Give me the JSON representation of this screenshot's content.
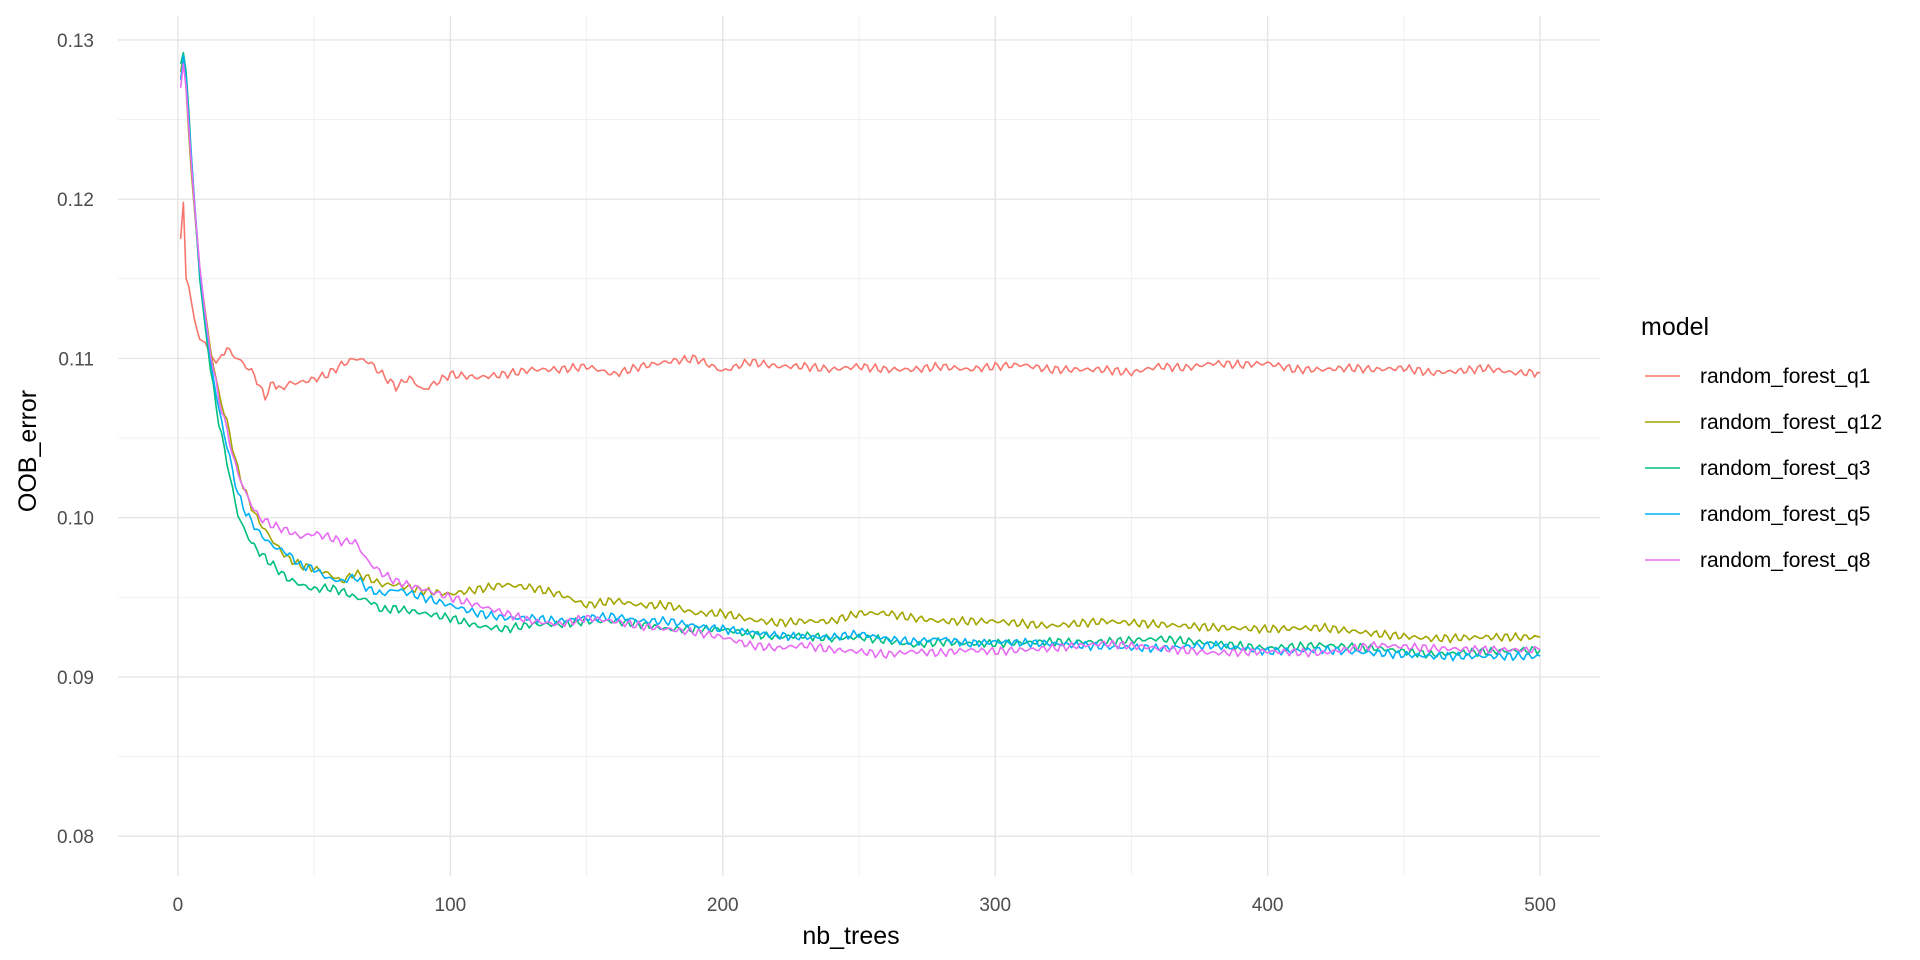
{
  "chart_data": {
    "type": "line",
    "xlabel": "nb_trees",
    "ylabel": "OOB_error",
    "xlim": [
      -22,
      522
    ],
    "ylim": [
      0.0775,
      0.1315
    ],
    "x_ticks": [
      0,
      100,
      200,
      300,
      400,
      500
    ],
    "x_tick_labels": [
      "0",
      "100",
      "200",
      "300",
      "400",
      "500"
    ],
    "y_ticks": [
      0.08,
      0.09,
      0.1,
      0.11,
      0.12,
      0.13
    ],
    "y_tick_labels": [
      "0.08",
      "0.09",
      "0.10",
      "0.11",
      "0.12",
      "0.13"
    ],
    "grid": true,
    "legend_position": "right",
    "legend_title": "model",
    "series": [
      {
        "name": "random_forest_q1",
        "color": "#F8766D",
        "x": [
          1,
          2,
          3,
          4,
          5,
          6,
          7,
          8,
          10,
          12,
          15,
          18,
          20,
          22,
          25,
          28,
          30,
          32,
          35,
          38,
          40,
          45,
          50,
          55,
          60,
          65,
          70,
          75,
          80,
          85,
          90,
          95,
          100,
          110,
          120,
          130,
          140,
          150,
          160,
          170,
          180,
          190,
          200,
          210,
          220,
          230,
          240,
          250,
          260,
          270,
          280,
          290,
          300,
          310,
          320,
          330,
          340,
          350,
          360,
          370,
          380,
          390,
          400,
          410,
          420,
          430,
          440,
          450,
          460,
          470,
          480,
          490,
          500
        ],
        "y": [
          0.1175,
          0.1198,
          0.115,
          0.1145,
          0.1135,
          0.1125,
          0.1118,
          0.1112,
          0.111,
          0.1102,
          0.1098,
          0.1107,
          0.1102,
          0.11,
          0.1095,
          0.109,
          0.1082,
          0.1076,
          0.1085,
          0.108,
          0.1084,
          0.1085,
          0.1087,
          0.109,
          0.1096,
          0.11,
          0.1098,
          0.109,
          0.1082,
          0.1088,
          0.108,
          0.1085,
          0.109,
          0.1088,
          0.109,
          0.1093,
          0.1093,
          0.1095,
          0.109,
          0.1095,
          0.1098,
          0.11,
          0.1092,
          0.1098,
          0.1095,
          0.1095,
          0.1093,
          0.1095,
          0.1093,
          0.1093,
          0.1095,
          0.1093,
          0.1095,
          0.1096,
          0.1093,
          0.1093,
          0.1093,
          0.1091,
          0.1095,
          0.1094,
          0.1097,
          0.1096,
          0.1097,
          0.1093,
          0.1093,
          0.1094,
          0.1093,
          0.1094,
          0.1091,
          0.1092,
          0.1094,
          0.1091,
          0.1091
        ]
      },
      {
        "name": "random_forest_q12",
        "color": "#A3A500",
        "x": [
          1,
          2,
          3,
          4,
          5,
          6,
          7,
          8,
          10,
          12,
          15,
          18,
          20,
          22,
          25,
          28,
          30,
          35,
          40,
          45,
          50,
          55,
          60,
          65,
          70,
          75,
          80,
          90,
          100,
          110,
          120,
          130,
          140,
          150,
          160,
          170,
          180,
          190,
          200,
          210,
          220,
          230,
          240,
          250,
          260,
          270,
          280,
          290,
          300,
          320,
          340,
          360,
          380,
          400,
          420,
          440,
          460,
          480,
          500
        ],
        "y": [
          0.128,
          0.129,
          0.127,
          0.124,
          0.1215,
          0.1195,
          0.1175,
          0.1155,
          0.113,
          0.1105,
          0.1078,
          0.106,
          0.1045,
          0.103,
          0.1015,
          0.1003,
          0.0997,
          0.0985,
          0.0975,
          0.097,
          0.0968,
          0.0965,
          0.096,
          0.0965,
          0.0962,
          0.0958,
          0.0958,
          0.0954,
          0.0952,
          0.0955,
          0.0958,
          0.0956,
          0.0952,
          0.0945,
          0.0948,
          0.0945,
          0.0945,
          0.094,
          0.094,
          0.0936,
          0.0934,
          0.0935,
          0.0935,
          0.094,
          0.094,
          0.0937,
          0.0935,
          0.0935,
          0.0935,
          0.0932,
          0.0935,
          0.0933,
          0.0931,
          0.093,
          0.0931,
          0.0927,
          0.0924,
          0.0925,
          0.0925
        ]
      },
      {
        "name": "random_forest_q3",
        "color": "#00BF7D",
        "x": [
          1,
          2,
          3,
          4,
          5,
          6,
          7,
          8,
          10,
          12,
          15,
          18,
          20,
          22,
          25,
          28,
          30,
          35,
          40,
          45,
          50,
          55,
          60,
          65,
          70,
          75,
          80,
          90,
          100,
          110,
          120,
          130,
          140,
          150,
          160,
          170,
          180,
          190,
          200,
          210,
          220,
          230,
          240,
          250,
          260,
          270,
          280,
          290,
          300,
          320,
          340,
          360,
          380,
          400,
          420,
          440,
          460,
          480,
          500
        ],
        "y": [
          0.1285,
          0.1292,
          0.128,
          0.1255,
          0.1225,
          0.12,
          0.1175,
          0.115,
          0.112,
          0.1092,
          0.106,
          0.1035,
          0.1018,
          0.1002,
          0.099,
          0.0982,
          0.0978,
          0.097,
          0.0962,
          0.0958,
          0.0955,
          0.0956,
          0.0954,
          0.095,
          0.0948,
          0.0942,
          0.0943,
          0.094,
          0.0937,
          0.0932,
          0.093,
          0.0933,
          0.0933,
          0.0935,
          0.0935,
          0.0933,
          0.093,
          0.093,
          0.093,
          0.0927,
          0.0925,
          0.0926,
          0.0924,
          0.0925,
          0.0923,
          0.092,
          0.0922,
          0.0921,
          0.0921,
          0.0922,
          0.0922,
          0.0924,
          0.0921,
          0.0918,
          0.092,
          0.0918,
          0.0914,
          0.0916,
          0.0917
        ]
      },
      {
        "name": "random_forest_q5",
        "color": "#00B0F6",
        "x": [
          1,
          2,
          3,
          4,
          5,
          6,
          7,
          8,
          10,
          12,
          15,
          18,
          20,
          22,
          25,
          28,
          30,
          35,
          40,
          45,
          50,
          55,
          60,
          65,
          70,
          75,
          80,
          90,
          100,
          110,
          120,
          130,
          140,
          150,
          160,
          170,
          180,
          190,
          200,
          210,
          220,
          230,
          240,
          250,
          260,
          270,
          280,
          290,
          300,
          320,
          340,
          360,
          380,
          400,
          420,
          440,
          460,
          480,
          500
        ],
        "y": [
          0.1275,
          0.129,
          0.1275,
          0.125,
          0.1225,
          0.12,
          0.1178,
          0.1155,
          0.1125,
          0.1098,
          0.1068,
          0.1045,
          0.103,
          0.1015,
          0.1003,
          0.0995,
          0.099,
          0.0982,
          0.0978,
          0.097,
          0.0968,
          0.0962,
          0.096,
          0.0963,
          0.0955,
          0.0952,
          0.0955,
          0.095,
          0.0945,
          0.094,
          0.0937,
          0.0937,
          0.0935,
          0.0937,
          0.0938,
          0.0935,
          0.0935,
          0.0932,
          0.093,
          0.0928,
          0.0926,
          0.0925,
          0.0925,
          0.0927,
          0.0924,
          0.0922,
          0.0924,
          0.0921,
          0.0922,
          0.0921,
          0.0919,
          0.0918,
          0.092,
          0.0916,
          0.0917,
          0.0915,
          0.0913,
          0.0913,
          0.0913
        ]
      },
      {
        "name": "random_forest_q8",
        "color": "#E76BF3",
        "x": [
          1,
          2,
          3,
          4,
          5,
          6,
          7,
          8,
          10,
          12,
          15,
          18,
          20,
          22,
          25,
          28,
          30,
          35,
          40,
          45,
          50,
          55,
          60,
          65,
          70,
          75,
          80,
          90,
          100,
          110,
          120,
          130,
          140,
          150,
          160,
          170,
          180,
          190,
          200,
          210,
          220,
          230,
          240,
          250,
          260,
          270,
          280,
          290,
          300,
          320,
          340,
          360,
          380,
          400,
          420,
          440,
          460,
          480,
          500
        ],
        "y": [
          0.127,
          0.1285,
          0.127,
          0.1245,
          0.122,
          0.1198,
          0.1178,
          0.1158,
          0.1128,
          0.1102,
          0.1075,
          0.1055,
          0.104,
          0.1028,
          0.1015,
          0.1005,
          0.1,
          0.0995,
          0.0992,
          0.0988,
          0.099,
          0.0988,
          0.0985,
          0.0985,
          0.0972,
          0.0965,
          0.096,
          0.0955,
          0.095,
          0.0945,
          0.094,
          0.0935,
          0.0933,
          0.0937,
          0.0935,
          0.0932,
          0.093,
          0.0928,
          0.0925,
          0.092,
          0.0918,
          0.092,
          0.0917,
          0.0916,
          0.0914,
          0.0916,
          0.0915,
          0.0917,
          0.0916,
          0.0918,
          0.0921,
          0.0918,
          0.0915,
          0.0916,
          0.0915,
          0.092,
          0.0918,
          0.0917,
          0.0917
        ]
      }
    ]
  }
}
